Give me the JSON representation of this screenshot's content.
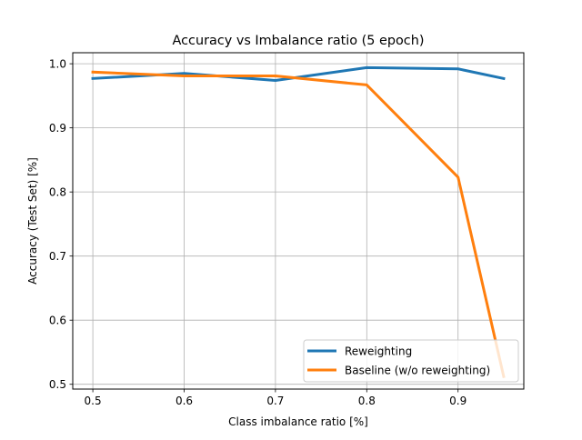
{
  "chart_data": {
    "type": "line",
    "title": "Accuracy vs Imbalance ratio (5 epoch)",
    "xlabel": "Class imbalance ratio [%]",
    "ylabel": "Accuracy (Test Set) [%]",
    "xlim": [
      0.478,
      0.972
    ],
    "ylim": [
      0.4925,
      1.0172
    ],
    "xticks": [
      0.5,
      0.6,
      0.7,
      0.8,
      0.9
    ],
    "xtick_labels": [
      "0.5",
      "0.6",
      "0.7",
      "0.8",
      "0.9"
    ],
    "yticks": [
      0.5,
      0.6,
      0.7,
      0.8,
      0.9,
      1.0
    ],
    "ytick_labels": [
      "0.5",
      "0.6",
      "0.7",
      "0.8",
      "0.9",
      "1.0"
    ],
    "grid": true,
    "legend_position": "lower-right",
    "series": [
      {
        "name": "Reweighting",
        "color": "#1f77b4",
        "x": [
          0.5,
          0.6,
          0.7,
          0.8,
          0.9,
          0.95
        ],
        "y": [
          0.977,
          0.985,
          0.974,
          0.994,
          0.992,
          0.977
        ]
      },
      {
        "name": "Baseline (w/o reweighting)",
        "color": "#ff7f0e",
        "x": [
          0.5,
          0.6,
          0.7,
          0.8,
          0.9,
          0.95
        ],
        "y": [
          0.987,
          0.981,
          0.981,
          0.967,
          0.823,
          0.512
        ]
      }
    ]
  }
}
